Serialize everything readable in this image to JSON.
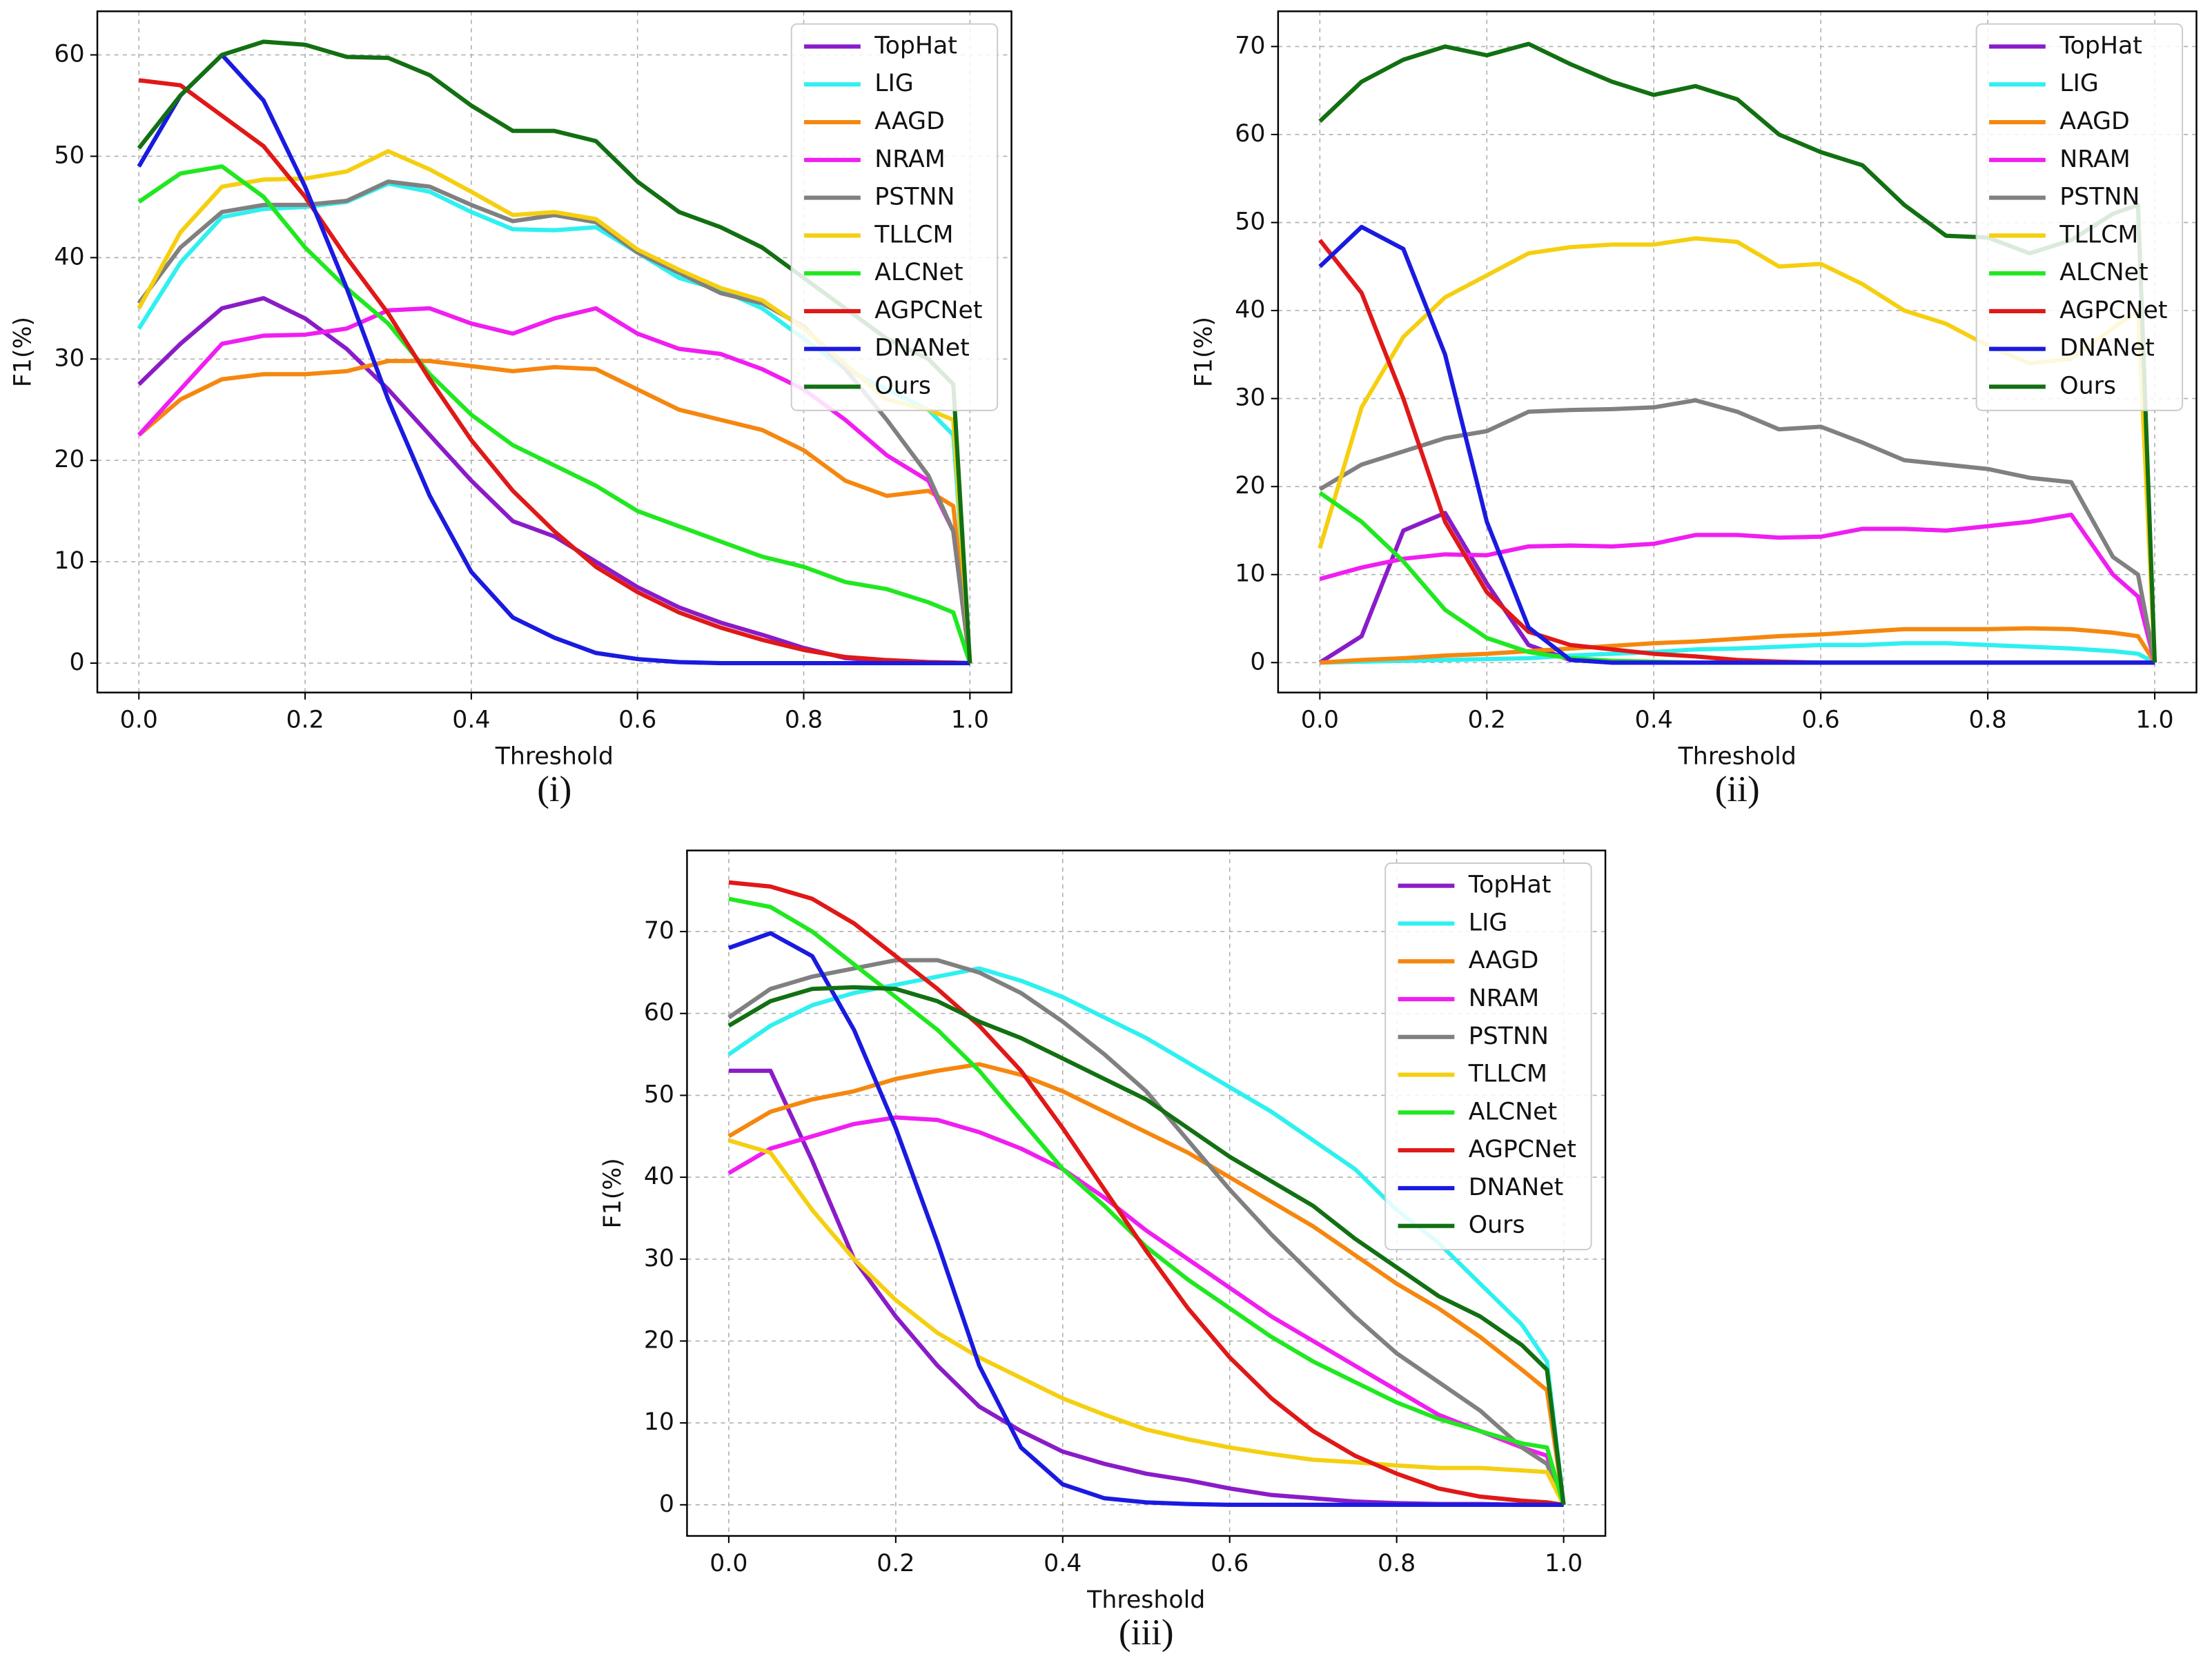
{
  "chart_data": [
    {
      "type": "line",
      "caption": "(i)",
      "xlabel": "Threshold",
      "ylabel": "F1(%)",
      "legend": "upper right",
      "grid": true,
      "xlim": [
        -0.05,
        1.05
      ],
      "ylim": [
        -2.9,
        64.3
      ],
      "xticks": [
        {
          "value": 0,
          "label": "0.0"
        },
        0.2,
        0.4,
        0.6,
        0.8,
        {
          "value": 1,
          "label": "1.0"
        }
      ],
      "yticks": [
        0,
        10,
        20,
        30,
        40,
        50,
        60
      ],
      "x": [
        0,
        0.05,
        0.1,
        0.15,
        0.2,
        0.25,
        0.3,
        0.35,
        0.4,
        0.45,
        0.5,
        0.55,
        0.6,
        0.65,
        0.7,
        0.75,
        0.8,
        0.85,
        0.9,
        0.95,
        0.98,
        1
      ],
      "series": [
        {
          "name": "TopHat",
          "color": "#8a1cc8",
          "values": [
            27.5,
            31.5,
            35,
            36,
            34,
            31,
            27,
            22.5,
            18,
            14,
            12.5,
            10,
            7.5,
            5.5,
            4,
            2.8,
            1.5,
            0.5,
            0.2,
            0.1,
            0.05,
            0
          ]
        },
        {
          "name": "LIG",
          "color": "#2ff0f0",
          "values": [
            33,
            39.5,
            44,
            44.8,
            45,
            45.5,
            47.3,
            46.5,
            44.5,
            42.8,
            42.7,
            43,
            40.5,
            38,
            36.8,
            35,
            32,
            29,
            27,
            25,
            22.5,
            0
          ]
        },
        {
          "name": "AAGD",
          "color": "#f5870f",
          "values": [
            22.5,
            26,
            28,
            28.5,
            28.5,
            28.8,
            29.8,
            29.8,
            29.3,
            28.8,
            29.2,
            29,
            27,
            25,
            24,
            23,
            21,
            18,
            16.5,
            17,
            15.5,
            0
          ]
        },
        {
          "name": "NRAM",
          "color": "#f01ef0",
          "values": [
            22.5,
            27,
            31.5,
            32.3,
            32.4,
            33,
            34.8,
            35,
            33.5,
            32.5,
            34,
            35,
            32.5,
            31,
            30.5,
            29,
            27,
            24,
            20.5,
            18,
            13,
            0
          ]
        },
        {
          "name": "PSTNN",
          "color": "#808080",
          "values": [
            35.5,
            41,
            44.5,
            45.2,
            45.2,
            45.6,
            47.5,
            47,
            45.2,
            43.6,
            44.2,
            43.5,
            40.5,
            38.5,
            36.5,
            35.5,
            33.2,
            29,
            24,
            18.5,
            13,
            0
          ]
        },
        {
          "name": "TLLCM",
          "color": "#f5cf10",
          "values": [
            35,
            42.5,
            47,
            47.7,
            47.8,
            48.5,
            50.5,
            48.7,
            46.5,
            44.2,
            44.5,
            43.8,
            40.8,
            38.8,
            37,
            35.8,
            33,
            29.5,
            26,
            25,
            24,
            0
          ]
        },
        {
          "name": "ALCNet",
          "color": "#20e820",
          "values": [
            45.5,
            48.3,
            49,
            46,
            41,
            37,
            33.5,
            28.5,
            24.5,
            21.5,
            19.5,
            17.5,
            15,
            13.5,
            12,
            10.5,
            9.5,
            8,
            7.3,
            6,
            5,
            0
          ]
        },
        {
          "name": "AGPCNet",
          "color": "#e01818",
          "values": [
            57.5,
            57,
            54,
            51,
            46,
            40,
            34.5,
            28,
            22,
            17,
            13,
            9.5,
            7,
            5,
            3.5,
            2.3,
            1.3,
            0.6,
            0.3,
            0.1,
            0.05,
            0
          ]
        },
        {
          "name": "DNANet",
          "color": "#1a1ae0",
          "values": [
            49,
            56,
            60,
            55.5,
            47,
            37,
            26,
            16.5,
            9,
            4.5,
            2.5,
            1,
            0.4,
            0.1,
            0,
            0,
            0,
            0,
            0,
            0,
            0,
            0
          ]
        },
        {
          "name": "Ours",
          "color": "#127012",
          "values": [
            50.8,
            56,
            60,
            61.3,
            61,
            59.8,
            59.7,
            58,
            55,
            52.5,
            52.5,
            51.5,
            47.5,
            44.5,
            43,
            41,
            38,
            35,
            32,
            30,
            27.5,
            0
          ]
        }
      ]
    },
    {
      "type": "line",
      "caption": "(ii)",
      "xlabel": "Threshold",
      "ylabel": "F1(%)",
      "legend": "upper right",
      "grid": true,
      "xlim": [
        -0.05,
        1.05
      ],
      "ylim": [
        -3.4,
        74
      ],
      "xticks": [
        {
          "value": 0,
          "label": "0.0"
        },
        0.2,
        0.4,
        0.6,
        0.8,
        {
          "value": 1,
          "label": "1.0"
        }
      ],
      "yticks": [
        0,
        10,
        20,
        30,
        40,
        50,
        60,
        70
      ],
      "x": [
        0,
        0.05,
        0.1,
        0.15,
        0.2,
        0.25,
        0.3,
        0.35,
        0.4,
        0.45,
        0.5,
        0.55,
        0.6,
        0.65,
        0.7,
        0.75,
        0.8,
        0.85,
        0.9,
        0.95,
        0.98,
        1
      ],
      "series": [
        {
          "name": "TopHat",
          "color": "#8a1cc8",
          "values": [
            0,
            3,
            15,
            17,
            9,
            2,
            0.3,
            0,
            0,
            0,
            0,
            0,
            0,
            0,
            0,
            0,
            0,
            0,
            0,
            0,
            0,
            0
          ]
        },
        {
          "name": "LIG",
          "color": "#2ff0f0",
          "values": [
            0,
            0.1,
            0.2,
            0.3,
            0.4,
            0.5,
            0.8,
            1,
            1.2,
            1.5,
            1.6,
            1.8,
            2,
            2,
            2.2,
            2.2,
            2,
            1.8,
            1.6,
            1.3,
            1,
            0
          ]
        },
        {
          "name": "AAGD",
          "color": "#f5870f",
          "values": [
            0,
            0.3,
            0.5,
            0.8,
            1,
            1.3,
            1.6,
            1.9,
            2.2,
            2.4,
            2.7,
            3,
            3.2,
            3.5,
            3.8,
            3.8,
            3.8,
            3.9,
            3.8,
            3.4,
            3,
            0
          ]
        },
        {
          "name": "NRAM",
          "color": "#f01ef0",
          "values": [
            9.5,
            10.8,
            11.8,
            12.3,
            12.2,
            13.2,
            13.3,
            13.2,
            13.5,
            14.5,
            14.5,
            14.2,
            14.3,
            15.2,
            15.2,
            15,
            15.5,
            16,
            16.8,
            10,
            7.5,
            0
          ]
        },
        {
          "name": "PSTNN",
          "color": "#808080",
          "values": [
            19.7,
            22.5,
            24,
            25.5,
            26.3,
            28.5,
            28.7,
            28.8,
            29,
            29.8,
            28.5,
            26.5,
            26.8,
            25,
            23,
            22.5,
            22,
            21,
            20.5,
            12,
            10,
            0
          ]
        },
        {
          "name": "TLLCM",
          "color": "#f5cf10",
          "values": [
            13,
            29,
            37,
            41.5,
            44,
            46.5,
            47.2,
            47.5,
            47.5,
            48.2,
            47.8,
            45,
            45.3,
            43,
            40,
            38.5,
            36,
            34,
            34.5,
            38,
            40,
            0
          ]
        },
        {
          "name": "ALCNet",
          "color": "#20e820",
          "values": [
            19.3,
            16,
            11.5,
            6,
            2.8,
            1.2,
            0.5,
            0.2,
            0.1,
            0,
            0,
            0,
            0,
            0,
            0,
            0,
            0,
            0,
            0,
            0,
            0,
            0
          ]
        },
        {
          "name": "AGPCNet",
          "color": "#e01818",
          "values": [
            48,
            42,
            30,
            16,
            8,
            3.5,
            2,
            1.5,
            1,
            0.7,
            0.3,
            0.1,
            0,
            0,
            0,
            0,
            0,
            0,
            0,
            0,
            0,
            0
          ]
        },
        {
          "name": "DNANet",
          "color": "#1a1ae0",
          "values": [
            45,
            49.5,
            47,
            35,
            16,
            4,
            0.3,
            0,
            0,
            0,
            0,
            0,
            0,
            0,
            0,
            0,
            0,
            0,
            0,
            0,
            0,
            0
          ]
        },
        {
          "name": "Ours",
          "color": "#127012",
          "values": [
            61.5,
            66,
            68.5,
            70,
            69,
            70.3,
            68,
            66,
            64.5,
            65.5,
            64,
            60,
            58,
            56.5,
            52,
            48.5,
            48.3,
            46.5,
            48,
            51,
            52,
            0
          ]
        }
      ]
    },
    {
      "type": "line",
      "caption": "(iii)",
      "xlabel": "Threshold",
      "ylabel": "F1(%)",
      "legend": "upper right",
      "grid": true,
      "xlim": [
        -0.05,
        1.05
      ],
      "ylim": [
        -3.8,
        79.9
      ],
      "xticks": [
        {
          "value": 0,
          "label": "0.0"
        },
        0.2,
        0.4,
        0.6,
        0.8,
        {
          "value": 1,
          "label": "1.0"
        }
      ],
      "yticks": [
        0,
        10,
        20,
        30,
        40,
        50,
        60,
        70
      ],
      "x": [
        0,
        0.05,
        0.1,
        0.15,
        0.2,
        0.25,
        0.3,
        0.35,
        0.4,
        0.45,
        0.5,
        0.55,
        0.6,
        0.65,
        0.7,
        0.75,
        0.8,
        0.85,
        0.9,
        0.95,
        0.98,
        1
      ],
      "series": [
        {
          "name": "TopHat",
          "color": "#8a1cc8",
          "values": [
            53,
            53,
            42,
            30,
            23,
            17,
            12,
            9,
            6.5,
            5,
            3.8,
            3,
            2,
            1.2,
            0.8,
            0.4,
            0.2,
            0.1,
            0.1,
            0,
            0,
            0
          ]
        },
        {
          "name": "LIG",
          "color": "#2ff0f0",
          "values": [
            55,
            58.5,
            61,
            62.5,
            63.5,
            64.5,
            65.5,
            64,
            62,
            59.5,
            57,
            54,
            51,
            48,
            44.5,
            41,
            36,
            32,
            27,
            22,
            17.5,
            0
          ]
        },
        {
          "name": "AAGD",
          "color": "#f5870f",
          "values": [
            45,
            48,
            49.5,
            50.5,
            52,
            53,
            53.8,
            52.5,
            50.5,
            48,
            45.5,
            43,
            40,
            37,
            34,
            30.5,
            27,
            24,
            20.5,
            16.5,
            14,
            0
          ]
        },
        {
          "name": "NRAM",
          "color": "#f01ef0",
          "values": [
            40.5,
            43.5,
            45,
            46.5,
            47.3,
            47,
            45.5,
            43.5,
            41,
            37.5,
            33.5,
            30,
            26.5,
            23,
            20,
            17,
            14,
            11,
            9,
            7,
            6,
            0
          ]
        },
        {
          "name": "PSTNN",
          "color": "#808080",
          "values": [
            59.5,
            63,
            64.5,
            65.5,
            66.5,
            66.5,
            65,
            62.5,
            59,
            55,
            50.5,
            44.5,
            38.5,
            33,
            28,
            23,
            18.5,
            15,
            11.5,
            7,
            5,
            0
          ]
        },
        {
          "name": "TLLCM",
          "color": "#f5cf10",
          "values": [
            44.5,
            43,
            36,
            30,
            25,
            21,
            18,
            15.5,
            13,
            11,
            9.2,
            8,
            7,
            6.2,
            5.5,
            5.2,
            4.8,
            4.5,
            4.5,
            4.2,
            4,
            0
          ]
        },
        {
          "name": "ALCNet",
          "color": "#20e820",
          "values": [
            74,
            73,
            70,
            66,
            62,
            58,
            53,
            47,
            41,
            36.5,
            31.5,
            27.5,
            24,
            20.5,
            17.5,
            15,
            12.5,
            10.5,
            9,
            7.5,
            7,
            0
          ]
        },
        {
          "name": "AGPCNet",
          "color": "#e01818",
          "values": [
            76,
            75.5,
            74,
            71,
            67,
            63,
            58.5,
            53,
            46,
            38.5,
            31,
            24,
            18,
            13,
            9,
            6,
            3.8,
            2,
            1,
            0.5,
            0.3,
            0
          ]
        },
        {
          "name": "DNANet",
          "color": "#1a1ae0",
          "values": [
            68,
            69.8,
            67,
            58,
            46,
            32,
            17,
            7,
            2.5,
            0.8,
            0.3,
            0.1,
            0,
            0,
            0,
            0,
            0,
            0,
            0,
            0,
            0,
            0
          ]
        },
        {
          "name": "Ours",
          "color": "#127012",
          "values": [
            58.5,
            61.5,
            63,
            63.2,
            63,
            61.5,
            59,
            57,
            54.5,
            52,
            49.5,
            46,
            42.5,
            39.5,
            36.5,
            32.5,
            29,
            25.5,
            23,
            19.5,
            16.5,
            0
          ]
        }
      ]
    }
  ]
}
